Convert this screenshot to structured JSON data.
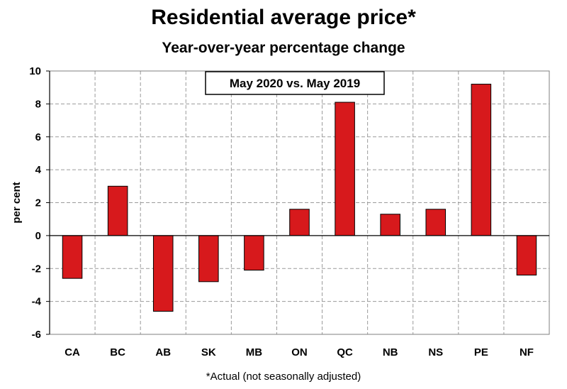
{
  "chart_data": {
    "type": "bar",
    "title": "Residential average price*",
    "subtitle": "Year-over-year percentage change",
    "annotation": "May 2020 vs. May 2019",
    "ylabel": "per cent",
    "xlabel": "",
    "footnote": "*Actual (not seasonally adjusted)",
    "categories": [
      "CA",
      "BC",
      "AB",
      "SK",
      "MB",
      "ON",
      "QC",
      "NB",
      "NS",
      "PE",
      "NF"
    ],
    "values": [
      -2.6,
      3.0,
      -4.6,
      -2.8,
      -2.1,
      1.6,
      8.1,
      1.3,
      1.6,
      9.2,
      -2.4
    ],
    "ylim": [
      -6,
      10
    ],
    "yticks": [
      10,
      8,
      6,
      4,
      2,
      0,
      -2,
      -4,
      -6
    ],
    "grid": true,
    "bar_color": "#D7191C",
    "bar_edge_color": "#000000"
  }
}
